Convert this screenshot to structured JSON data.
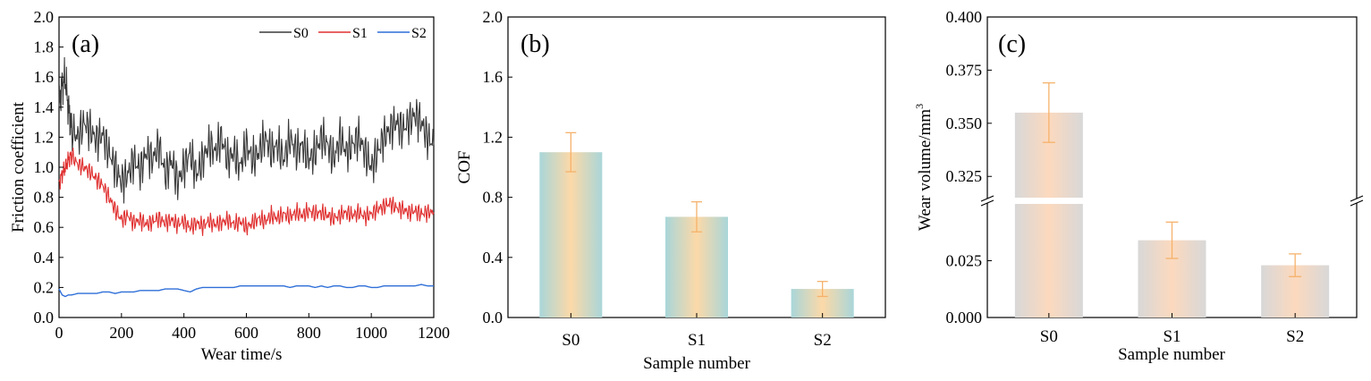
{
  "chart_data": [
    {
      "type": "line",
      "panel_label": "(a)",
      "xlabel": "Wear time/s",
      "ylabel": "Friction coefficient",
      "xlim": [
        0,
        1200
      ],
      "ylim": [
        0,
        2.0
      ],
      "xticks": [
        "0",
        "200",
        "400",
        "600",
        "800",
        "1000",
        "1200"
      ],
      "yticks": [
        "0.0",
        "0.2",
        "0.4",
        "0.6",
        "0.8",
        "1.0",
        "1.2",
        "1.4",
        "1.6",
        "1.8",
        "2.0"
      ],
      "legend_position": "top-right",
      "series": [
        {
          "name": "S0",
          "color": "#3a3a3a",
          "x": [
            0,
            10,
            20,
            30,
            40,
            60,
            80,
            100,
            120,
            140,
            160,
            180,
            200,
            220,
            240,
            260,
            280,
            300,
            320,
            340,
            360,
            380,
            400,
            420,
            440,
            460,
            480,
            500,
            520,
            540,
            560,
            580,
            600,
            620,
            640,
            660,
            680,
            700,
            720,
            740,
            760,
            780,
            800,
            820,
            840,
            860,
            880,
            900,
            920,
            940,
            960,
            980,
            1000,
            1020,
            1040,
            1060,
            1080,
            1100,
            1120,
            1140,
            1160,
            1180,
            1200
          ],
          "values": [
            1.4,
            1.55,
            1.6,
            1.4,
            1.25,
            1.2,
            1.3,
            1.25,
            1.18,
            1.22,
            1.1,
            1.0,
            0.9,
            0.95,
            1.05,
            0.98,
            1.1,
            1.05,
            1.15,
            0.95,
            1.05,
            0.9,
            1.0,
            1.1,
            0.95,
            1.05,
            1.15,
            1.1,
            1.2,
            1.05,
            1.1,
            1.0,
            1.15,
            1.05,
            1.1,
            1.2,
            1.1,
            1.15,
            1.05,
            1.2,
            1.1,
            1.15,
            1.05,
            1.1,
            1.2,
            1.15,
            1.05,
            1.2,
            1.1,
            1.15,
            1.2,
            1.1,
            1.0,
            1.1,
            1.2,
            1.25,
            1.3,
            1.25,
            1.3,
            1.35,
            1.3,
            1.2,
            1.15
          ]
        },
        {
          "name": "S1",
          "color": "#e03030",
          "x": [
            0,
            10,
            20,
            30,
            40,
            60,
            80,
            100,
            120,
            140,
            160,
            180,
            200,
            220,
            240,
            260,
            280,
            300,
            320,
            340,
            360,
            380,
            400,
            420,
            440,
            460,
            480,
            500,
            520,
            540,
            560,
            580,
            600,
            620,
            640,
            660,
            680,
            700,
            720,
            740,
            760,
            780,
            800,
            820,
            840,
            860,
            880,
            900,
            920,
            940,
            960,
            980,
            1000,
            1020,
            1040,
            1060,
            1080,
            1100,
            1120,
            1140,
            1160,
            1180,
            1200
          ],
          "values": [
            0.9,
            0.95,
            1.0,
            1.05,
            1.08,
            1.02,
            1.0,
            0.97,
            0.92,
            0.88,
            0.8,
            0.72,
            0.65,
            0.68,
            0.63,
            0.65,
            0.62,
            0.64,
            0.66,
            0.63,
            0.65,
            0.62,
            0.64,
            0.6,
            0.63,
            0.61,
            0.64,
            0.62,
            0.63,
            0.65,
            0.62,
            0.64,
            0.6,
            0.63,
            0.66,
            0.64,
            0.68,
            0.66,
            0.69,
            0.67,
            0.7,
            0.68,
            0.71,
            0.69,
            0.7,
            0.68,
            0.66,
            0.68,
            0.7,
            0.68,
            0.7,
            0.67,
            0.69,
            0.72,
            0.74,
            0.76,
            0.73,
            0.72,
            0.7,
            0.71,
            0.69,
            0.7,
            0.7
          ]
        },
        {
          "name": "S2",
          "color": "#2e6fd8",
          "x": [
            0,
            10,
            20,
            30,
            40,
            60,
            80,
            100,
            120,
            140,
            160,
            180,
            200,
            220,
            240,
            260,
            280,
            300,
            320,
            340,
            360,
            380,
            400,
            420,
            440,
            460,
            480,
            500,
            520,
            540,
            560,
            580,
            600,
            620,
            640,
            660,
            680,
            700,
            720,
            740,
            760,
            780,
            800,
            820,
            840,
            860,
            880,
            900,
            920,
            940,
            960,
            980,
            1000,
            1020,
            1040,
            1060,
            1080,
            1100,
            1120,
            1140,
            1160,
            1180,
            1200
          ],
          "values": [
            0.19,
            0.15,
            0.14,
            0.15,
            0.15,
            0.16,
            0.16,
            0.16,
            0.16,
            0.17,
            0.17,
            0.16,
            0.17,
            0.17,
            0.17,
            0.18,
            0.18,
            0.18,
            0.18,
            0.19,
            0.19,
            0.19,
            0.18,
            0.17,
            0.19,
            0.2,
            0.2,
            0.2,
            0.2,
            0.2,
            0.2,
            0.21,
            0.21,
            0.21,
            0.21,
            0.21,
            0.21,
            0.21,
            0.21,
            0.2,
            0.21,
            0.21,
            0.21,
            0.2,
            0.21,
            0.2,
            0.21,
            0.21,
            0.2,
            0.2,
            0.21,
            0.21,
            0.2,
            0.2,
            0.21,
            0.21,
            0.21,
            0.21,
            0.21,
            0.21,
            0.22,
            0.21,
            0.21
          ]
        }
      ]
    },
    {
      "type": "bar",
      "panel_label": "(b)",
      "xlabel": "Sample number",
      "ylabel": "COF",
      "ylim": [
        0,
        2.0
      ],
      "yticks": [
        "0.0",
        "0.4",
        "0.8",
        "1.2",
        "1.6",
        "2.0"
      ],
      "categories": [
        "S0",
        "S1",
        "S2"
      ],
      "values": [
        1.1,
        0.67,
        0.19
      ],
      "errors": [
        0.13,
        0.1,
        0.05
      ],
      "colors": [
        "#a9d6d9",
        "#fcd9a8"
      ]
    },
    {
      "type": "bar",
      "panel_label": "(c)",
      "xlabel": "Sample number",
      "ylabel": "Wear volume/mm",
      "ylabel_superscript": "3",
      "broken_axis": true,
      "lower_ylim": [
        0,
        0.05
      ],
      "upper_ylim": [
        0.315,
        0.4
      ],
      "lower_yticks": [
        "0.000",
        "0.025"
      ],
      "upper_yticks": [
        "0.325",
        "0.350",
        "0.375",
        "0.400"
      ],
      "categories": [
        "S0",
        "S1",
        "S2"
      ],
      "values": [
        0.355,
        0.034,
        0.023
      ],
      "errors": [
        0.014,
        0.008,
        0.005
      ],
      "colors": [
        "#d8d8d8",
        "#fcd9be"
      ]
    }
  ]
}
